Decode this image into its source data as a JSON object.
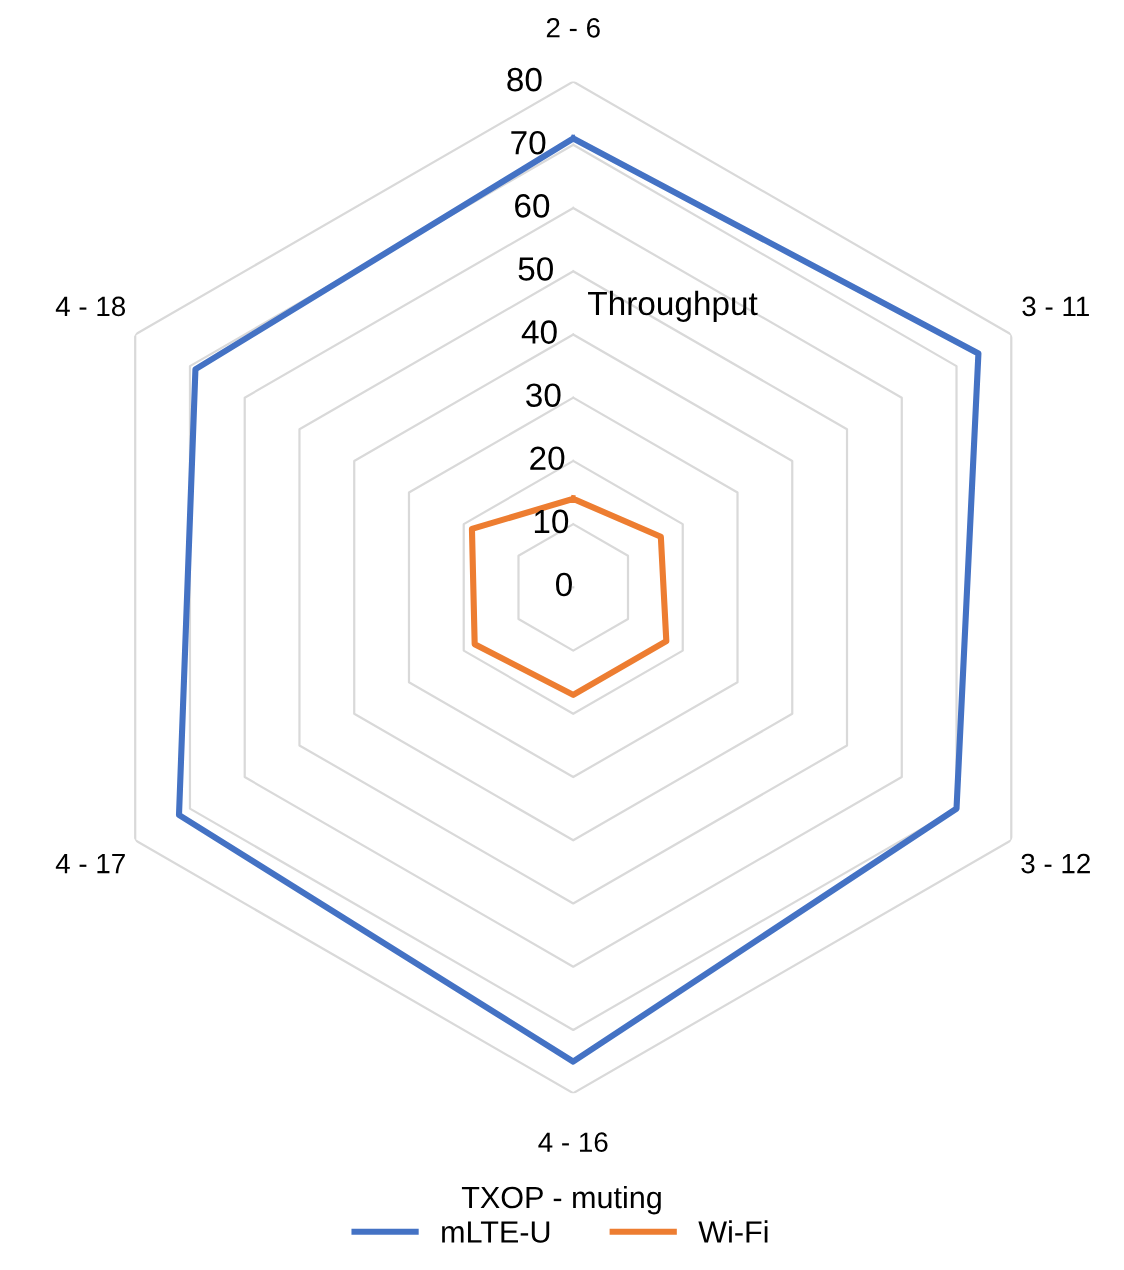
{
  "chart_data": {
    "type": "radar",
    "title": "Throughput",
    "xlabel": "TXOP - muting",
    "categories": [
      "2 - 6",
      "3 - 11",
      "3 - 12",
      "4 - 16",
      "4 - 17",
      "4 - 18"
    ],
    "series": [
      {
        "name": "mLTE-U",
        "color": "#4472c4",
        "values": [
          71,
          74,
          70,
          75,
          72,
          69
        ]
      },
      {
        "name": "Wi-Fi",
        "color": "#ed7d31",
        "values": [
          14,
          16,
          17,
          17,
          18,
          18.5
        ]
      }
    ],
    "ylim": [
      0,
      80
    ],
    "yticks": [
      0,
      10,
      20,
      30,
      40,
      50,
      60,
      70,
      80
    ],
    "grid": true,
    "legend": "bottom",
    "marker": "none",
    "line_style": "solid"
  }
}
